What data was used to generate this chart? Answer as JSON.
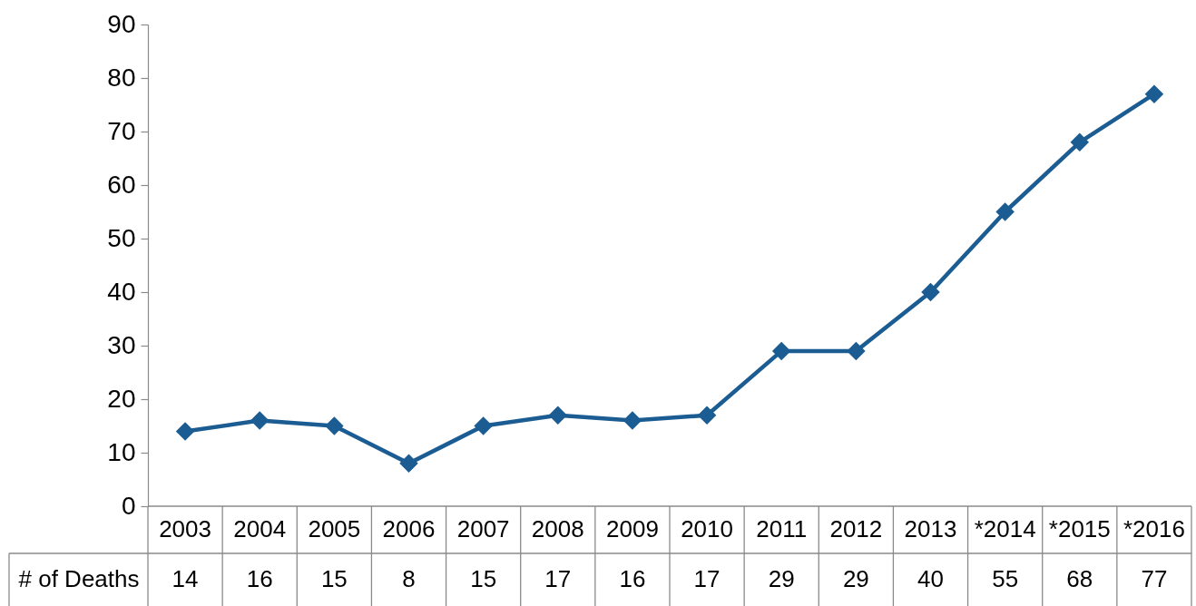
{
  "chart_data": {
    "type": "line",
    "categories": [
      "2003",
      "2004",
      "2005",
      "2006",
      "2007",
      "2008",
      "2009",
      "2010",
      "2011",
      "2012",
      "2013",
      "*2014",
      "*2015",
      "*2016"
    ],
    "series": [
      {
        "name": "# of Deaths",
        "color": "#1b5c92",
        "values": [
          14,
          16,
          15,
          8,
          15,
          17,
          16,
          17,
          29,
          29,
          40,
          55,
          68,
          77
        ]
      }
    ],
    "ylim": [
      0,
      90
    ],
    "yticks": [
      0,
      10,
      20,
      30,
      40,
      50,
      60,
      70,
      80,
      90
    ],
    "marker": "diamond",
    "line_style": "solid",
    "data_labels": true
  }
}
